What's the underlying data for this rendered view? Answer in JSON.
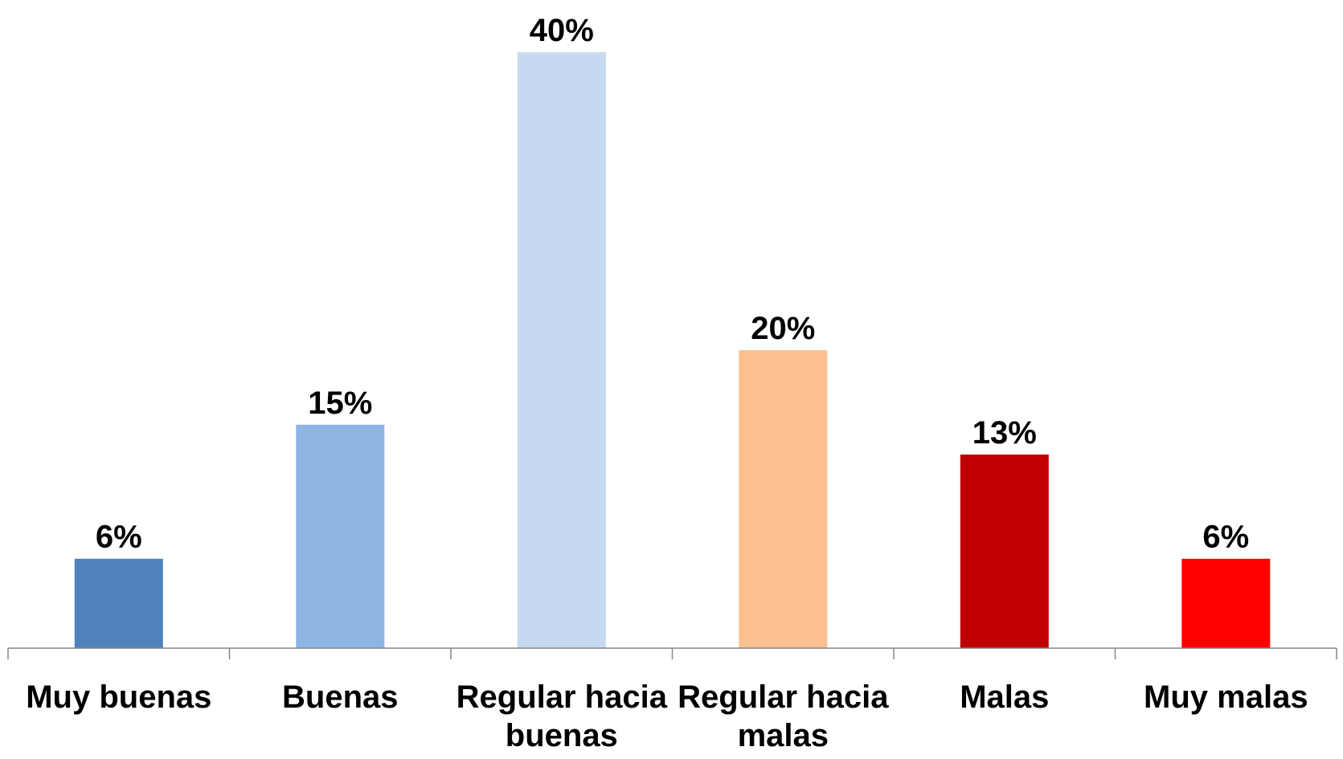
{
  "chart_data": {
    "type": "bar",
    "title": "",
    "xlabel": "",
    "ylabel": "",
    "ylim": [
      0,
      40
    ],
    "grid": false,
    "legend": "none",
    "categories": [
      [
        "Muy buenas"
      ],
      [
        "Buenas"
      ],
      [
        "Regular hacia",
        "buenas"
      ],
      [
        "Regular hacia",
        "malas"
      ],
      [
        "Malas"
      ],
      [
        "Muy malas"
      ]
    ],
    "values": [
      6,
      15,
      40,
      20,
      13,
      6
    ],
    "value_labels": [
      "6%",
      "15%",
      "40%",
      "20%",
      "13%",
      "6%"
    ],
    "colors": [
      "#4F81BD",
      "#8EB4E3",
      "#C6D9F1",
      "#FAC090",
      "#C00000",
      "#FF0000"
    ]
  }
}
